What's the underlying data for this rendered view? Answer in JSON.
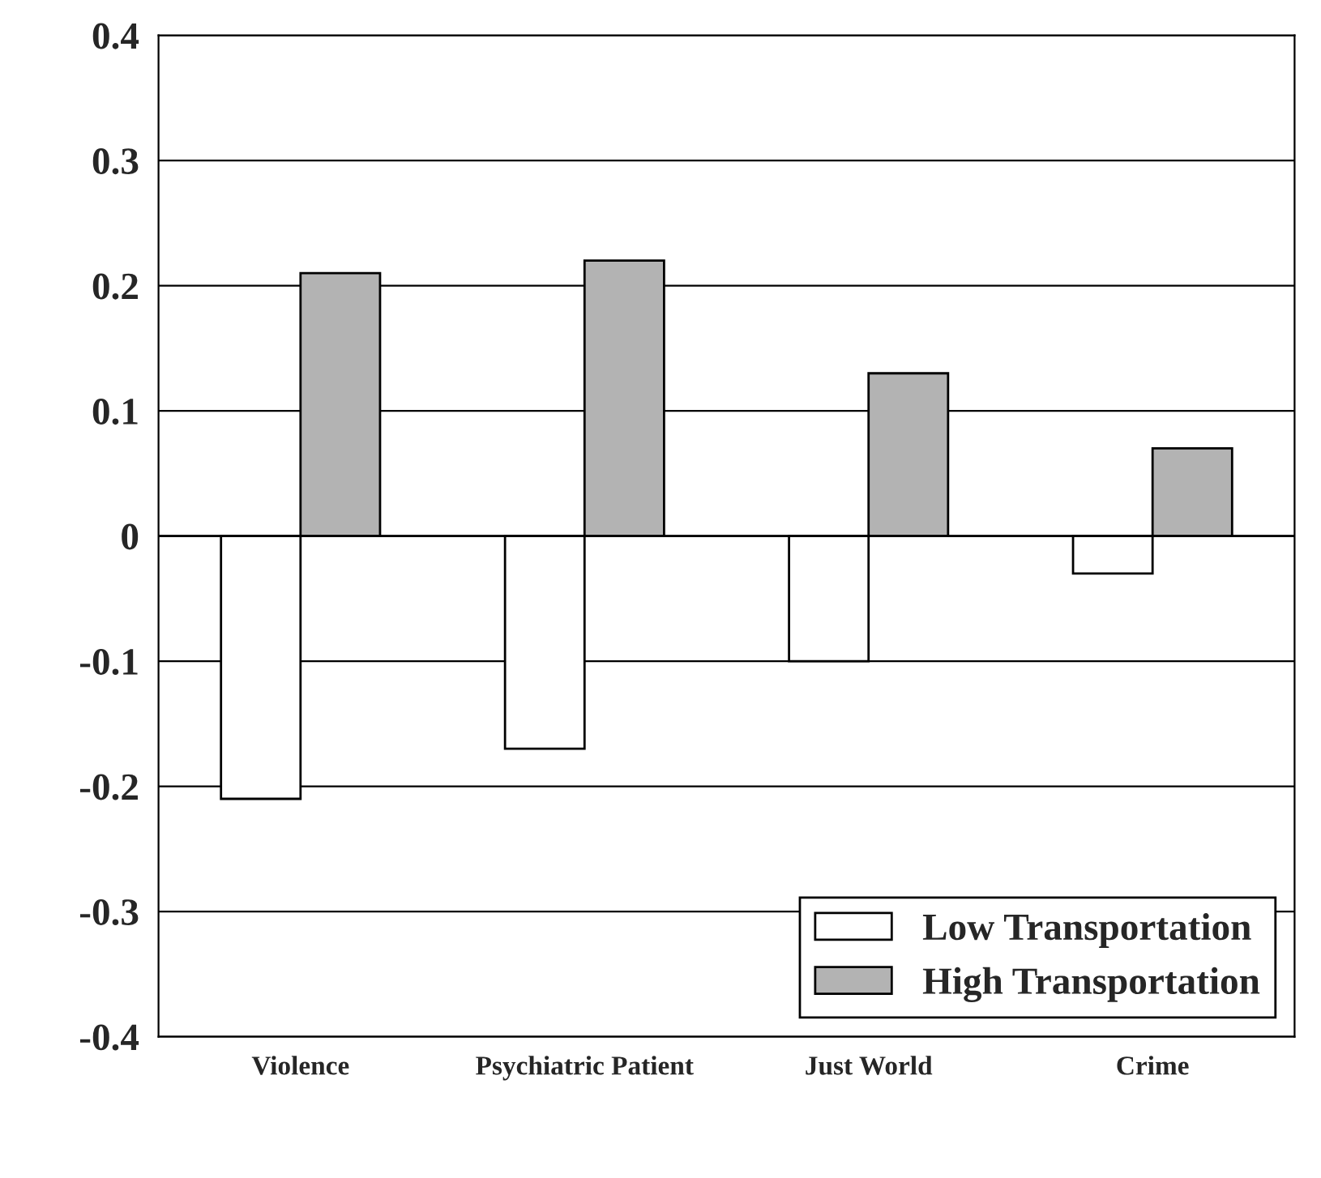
{
  "chart_data": {
    "type": "bar",
    "categories": [
      "Violence",
      "Psychiatric Patient",
      "Just World",
      "Crime"
    ],
    "series": [
      {
        "name": "Low Transportation",
        "color": "#ffffff",
        "values": [
          -0.21,
          -0.17,
          -0.1,
          -0.03
        ]
      },
      {
        "name": "High Transportation",
        "color": "#b3b3b3",
        "values": [
          0.21,
          0.22,
          0.13,
          0.07
        ]
      }
    ],
    "ylim": [
      -0.4,
      0.4
    ],
    "yticks": [
      {
        "value": -0.4,
        "label": "-0.4"
      },
      {
        "value": -0.3,
        "label": "-0.3"
      },
      {
        "value": -0.2,
        "label": "-0.2"
      },
      {
        "value": -0.1,
        "label": "-0.1"
      },
      0,
      0.1,
      0.2,
      0.3,
      0.4
    ],
    "grid": "y",
    "legend": "bottom right"
  }
}
